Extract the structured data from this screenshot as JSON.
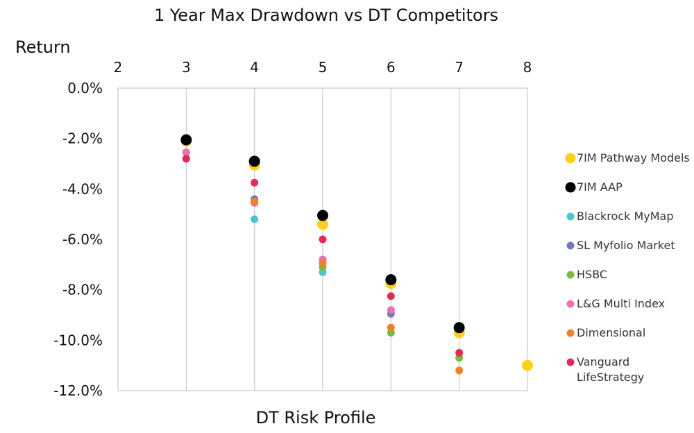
{
  "chart_data": {
    "type": "scatter",
    "title": "1 Year Max Drawdown vs DT Competitors",
    "xlabel": "DT Risk Profile",
    "ylabel": "Return",
    "xlim": [
      2,
      8
    ],
    "ylim": [
      -12.0,
      0.0
    ],
    "x_ticks": [
      "2",
      "3",
      "4",
      "5",
      "6",
      "7",
      "8"
    ],
    "y_ticks": [
      "0.0%",
      "-2.0%",
      "-4.0%",
      "-6.0%",
      "-8.0%",
      "-10.0%",
      "-12.0%"
    ],
    "grid": "vertical",
    "x_axis_position": "top",
    "legend_position": "right",
    "series": [
      {
        "name": "7IM Pathway Models",
        "color": "#FFD11A",
        "size": "large",
        "points": [
          [
            3,
            -2.1
          ],
          [
            4,
            -3.05
          ],
          [
            5,
            -5.4
          ],
          [
            6,
            -7.75
          ],
          [
            7,
            -9.7
          ],
          [
            8,
            -11.0
          ]
        ]
      },
      {
        "name": "7IM AAP",
        "color": "#000000",
        "size": "large",
        "points": [
          [
            3,
            -2.05
          ],
          [
            4,
            -2.9
          ],
          [
            5,
            -5.05
          ],
          [
            6,
            -7.6
          ],
          [
            7,
            -9.5
          ]
        ]
      },
      {
        "name": "Blackrock MyMap",
        "color": "#4FC3CF",
        "size": "small",
        "points": [
          [
            3,
            -2.55
          ],
          [
            4,
            -5.2
          ],
          [
            5,
            -7.3
          ]
        ]
      },
      {
        "name": "SL Myfolio Market",
        "color": "#7479BD",
        "size": "small",
        "points": [
          [
            3,
            -2.55
          ],
          [
            4,
            -4.4
          ],
          [
            5,
            -6.8
          ],
          [
            6,
            -8.95
          ]
        ]
      },
      {
        "name": "HSBC",
        "color": "#78B943",
        "size": "small",
        "points": [
          [
            3,
            -2.0
          ],
          [
            4,
            -4.5
          ],
          [
            5,
            -7.1
          ],
          [
            6,
            -9.7
          ],
          [
            7,
            -10.7
          ]
        ]
      },
      {
        "name": "L&G Multi Index",
        "color": "#EB72B2",
        "size": "small",
        "points": [
          [
            3,
            -2.55
          ],
          [
            4,
            -4.55
          ],
          [
            5,
            -6.8
          ],
          [
            6,
            -8.8
          ]
        ]
      },
      {
        "name": "Dimensional",
        "color": "#EE8128",
        "size": "small",
        "points": [
          [
            3,
            -2.15
          ],
          [
            4,
            -4.5
          ],
          [
            5,
            -6.95
          ],
          [
            6,
            -9.5
          ],
          [
            7,
            -11.2
          ]
        ]
      },
      {
        "name": "Vanguard LifeStrategy",
        "color": "#E22B56",
        "size": "small",
        "points": [
          [
            3,
            -2.8
          ],
          [
            4,
            -3.75
          ],
          [
            5,
            -6.0
          ],
          [
            6,
            -8.25
          ],
          [
            7,
            -10.5
          ]
        ]
      }
    ]
  }
}
